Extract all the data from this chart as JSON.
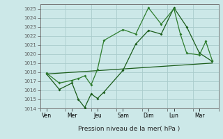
{
  "title": "",
  "xlabel": "Pression niveau de la mer( hPa )",
  "background_color": "#cce8e8",
  "grid_color": "#aacccc",
  "line_color_dark": "#1a5c1a",
  "line_color_mid": "#2e7d2e",
  "ylim": [
    1014,
    1025.5
  ],
  "yticks": [
    1014,
    1015,
    1016,
    1017,
    1018,
    1019,
    1020,
    1021,
    1022,
    1023,
    1024,
    1025
  ],
  "xlim": [
    0,
    14
  ],
  "day_labels": [
    "Ven",
    "Mer",
    "Jeu",
    "Sam",
    "Dim",
    "Lun",
    "Mar"
  ],
  "day_positions": [
    0.5,
    2.5,
    4.5,
    6.5,
    8.5,
    10.5,
    12.5
  ],
  "tick_positions": [
    0,
    2,
    4,
    6,
    8,
    10,
    12,
    14
  ],
  "series1_x": [
    0.5,
    1.5,
    2.5,
    3.0,
    3.5,
    4.0,
    4.5,
    5.0,
    6.5,
    7.5,
    8.5,
    9.5,
    10.5,
    11.5,
    12.5,
    13.5
  ],
  "series1_y": [
    1017.8,
    1016.1,
    1016.8,
    1015.0,
    1014.1,
    1015.6,
    1015.1,
    1015.8,
    1018.2,
    1021.1,
    1022.6,
    1022.2,
    1025.1,
    1023.0,
    1020.1,
    1019.2
  ],
  "series2_x": [
    0.5,
    1.5,
    2.5,
    3.0,
    3.5,
    4.0,
    4.5,
    5.0,
    6.5,
    7.5,
    8.5,
    9.5,
    10.5,
    11.0,
    11.5,
    12.5,
    13.0,
    13.5
  ],
  "series2_y": [
    1017.9,
    1016.8,
    1017.1,
    1017.3,
    1017.6,
    1016.6,
    1018.3,
    1021.5,
    1022.7,
    1022.2,
    1025.1,
    1023.3,
    1025.0,
    1022.2,
    1020.1,
    1019.9,
    1021.4,
    1019.3
  ],
  "series3_x": [
    0.5,
    13.5
  ],
  "series3_y": [
    1017.8,
    1019.0
  ],
  "figsize": [
    3.2,
    2.0
  ],
  "dpi": 100
}
